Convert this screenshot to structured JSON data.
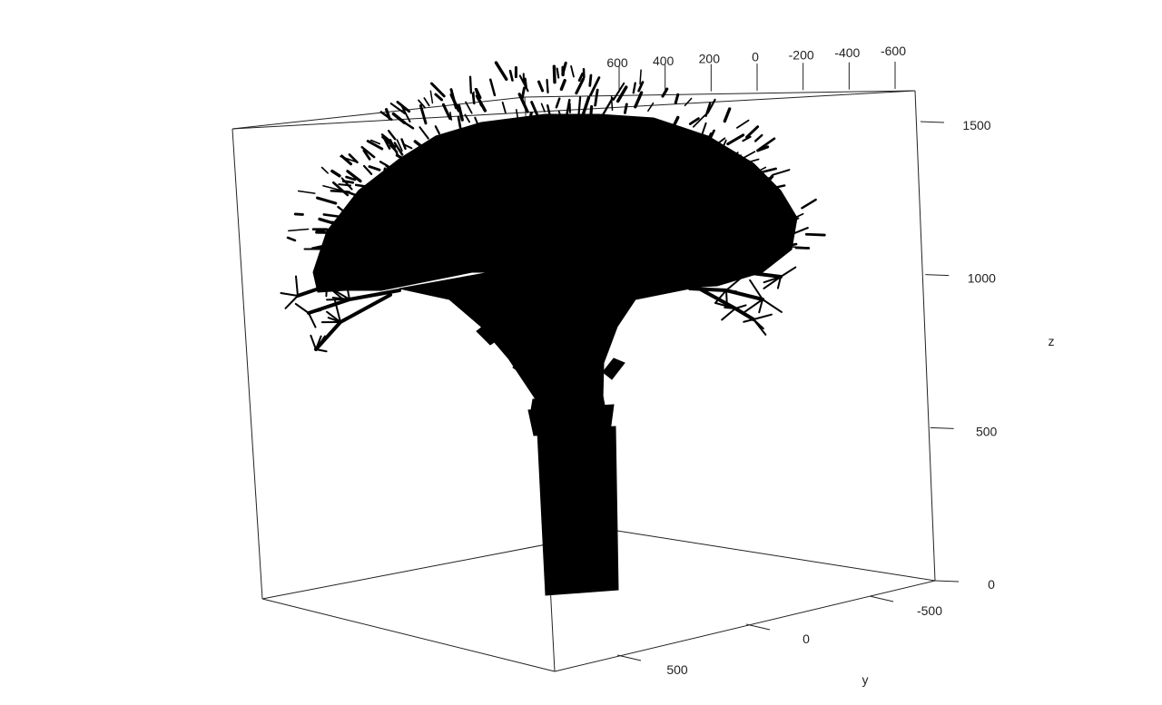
{
  "chart_data": {
    "type": "3d-scatter",
    "title": "",
    "subtitle": "",
    "box": true,
    "grid": false,
    "legend": "none",
    "colors": {
      "stroke": "#000000",
      "text": "#222222",
      "background": "#ffffff"
    },
    "axes": {
      "x": {
        "label": "",
        "ticks": [
          "600",
          "400",
          "200",
          "0",
          "-200",
          "-400",
          "-600"
        ],
        "range": [
          -700,
          700
        ]
      },
      "y": {
        "label": "y",
        "ticks": [
          "500",
          "0",
          "-500"
        ],
        "range": [
          -800,
          800
        ]
      },
      "z": {
        "label": "z",
        "ticks": [
          "1500",
          "1000",
          "500",
          "0"
        ],
        "range": [
          0,
          1600
        ]
      }
    },
    "series": [
      {
        "values": [
          {
            "part": "trunk",
            "z_from": 0,
            "z_to": 560
          },
          {
            "part": "main-branches",
            "z_from": 560,
            "z_to": 1000
          },
          {
            "part": "crown",
            "z_from": 1000,
            "z_to": 1550,
            "spread_x": [
              -600,
              600
            ]
          }
        ]
      }
    ]
  }
}
